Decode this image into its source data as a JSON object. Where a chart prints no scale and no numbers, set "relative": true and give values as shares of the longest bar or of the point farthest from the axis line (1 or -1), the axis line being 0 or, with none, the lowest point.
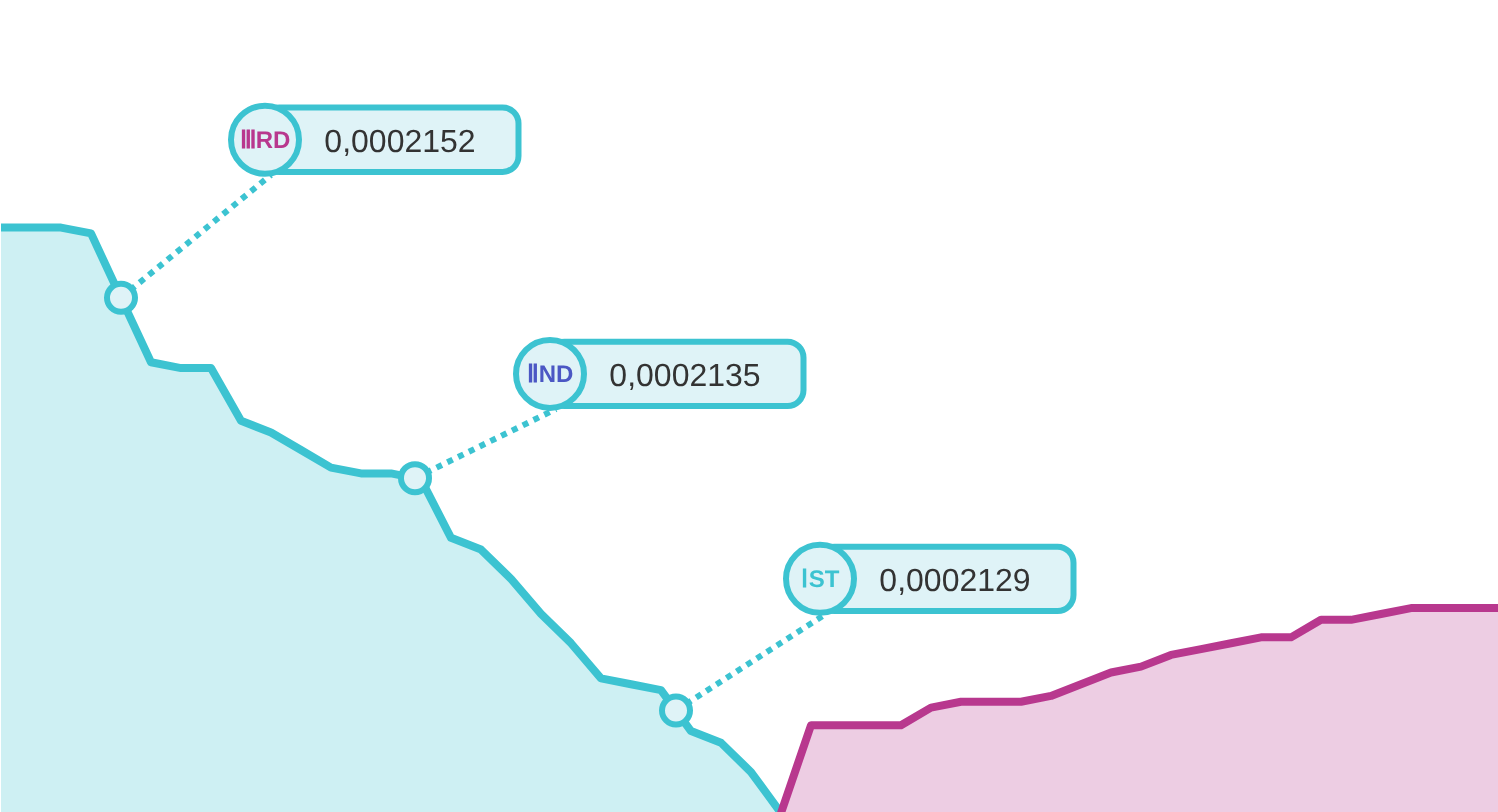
{
  "chart_data": {
    "type": "area",
    "relative": true,
    "categories": [
      null,
      null,
      null,
      null,
      null,
      null,
      null,
      null,
      null,
      null,
      null,
      null,
      null,
      null,
      null,
      null,
      null,
      null,
      null,
      null,
      null,
      null,
      null,
      null,
      null,
      null,
      null,
      null,
      null,
      null,
      null,
      null,
      null,
      null,
      null,
      null,
      null,
      null,
      null,
      null,
      null,
      null,
      null,
      null,
      null,
      null,
      null,
      null,
      null,
      null,
      null
    ],
    "series": [
      {
        "color": "#3cc3d1",
        "values": [
          1,
          1,
          1,
          0.99,
          0.88,
          0.77,
          0.76,
          0.76,
          0.67,
          0.65,
          0.62,
          0.59,
          0.58,
          0.58,
          0.57,
          0.47,
          0.45,
          0.4,
          0.34,
          0.29,
          0.23,
          0.22,
          0.21,
          0.14,
          0.12,
          0.07,
          0,
          null,
          null,
          null,
          null,
          null,
          null,
          null,
          null,
          null,
          null,
          null,
          null,
          null,
          null,
          null,
          null,
          null,
          null,
          null,
          null,
          null,
          null,
          null,
          null
        ]
      },
      {
        "color": "#b8388e",
        "values": [
          null,
          null,
          null,
          null,
          null,
          null,
          null,
          null,
          null,
          null,
          null,
          null,
          null,
          null,
          null,
          null,
          null,
          null,
          null,
          null,
          null,
          null,
          null,
          null,
          null,
          null,
          0,
          0.15,
          0.15,
          0.15,
          0.15,
          0.18,
          0.19,
          0.19,
          0.19,
          0.2,
          0.22,
          0.24,
          0.25,
          0.27,
          0.28,
          0.29,
          0.3,
          0.3,
          0.33,
          0.33,
          0.34,
          0.35,
          0.35,
          0.35,
          0.35
        ]
      }
    ],
    "annotations": [
      "ⅢRD 0,0002152",
      "ⅡND 0,0002135",
      "ⅠST 0,0002129"
    ]
  }
}
